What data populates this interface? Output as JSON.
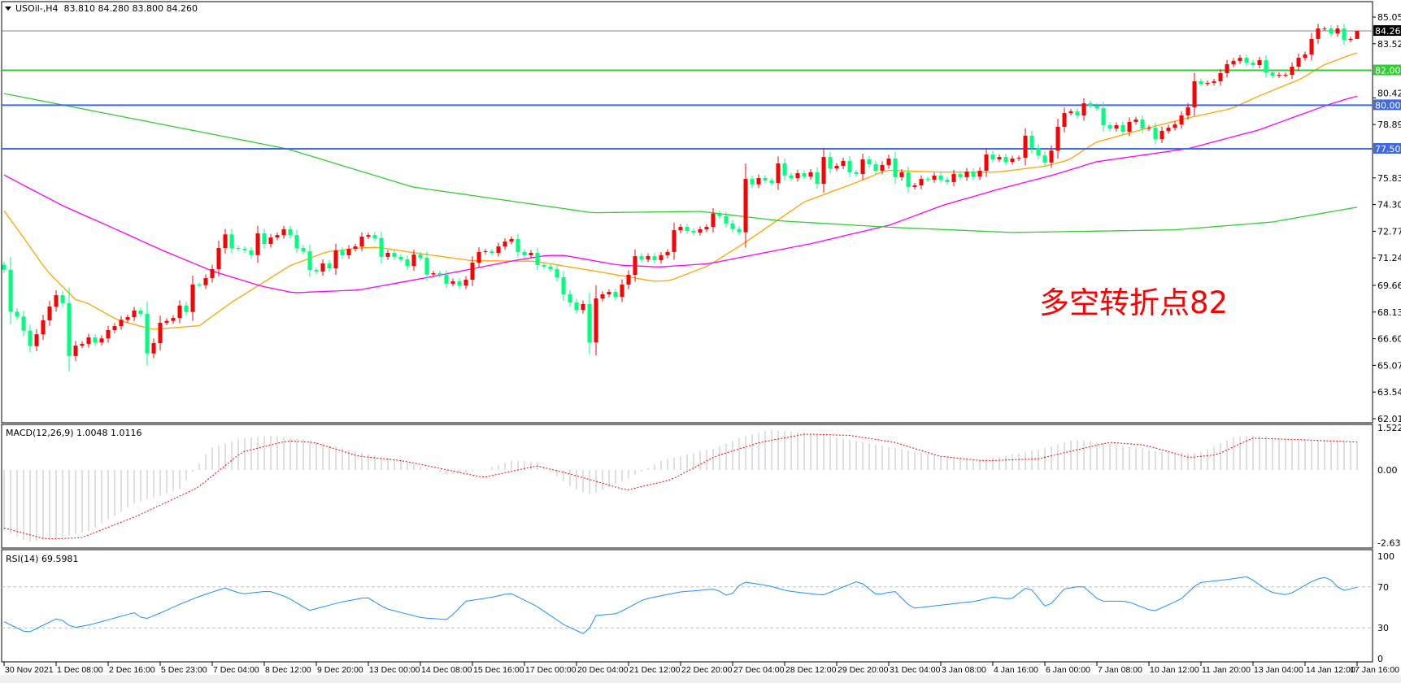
{
  "header": {
    "symbol": "USOil-,H4",
    "ohlc": "83.810 84.280 83.800 84.260"
  },
  "macd_label": "MACD(12,26,9) 1.0048 1.0116",
  "rsi_label": "RSI(14) 69.5981",
  "annotation": "多空转折点82",
  "colors": {
    "bull": "#ff0000",
    "bear": "#00ff7f",
    "ma_fast": "#ffa500",
    "ma_mid": "#ff00ff",
    "ma_slow": "#32cd32",
    "rsi": "#1e90ff",
    "macd_hist": "#c0c0c0",
    "macd_signal": "#ff0000",
    "line_82": "#32cd32",
    "line_80": "#4169e1",
    "line_77_5": "#4169e1",
    "price_line": "#778899"
  },
  "chart_data": {
    "type": "candlestick",
    "timeframe": "H4",
    "price_axis": {
      "range": [
        62.015,
        85.055
      ],
      "ticks": [
        "85.055",
        "83.525",
        "80.420",
        "78.890",
        "75.830",
        "74.300",
        "72.770",
        "71.240",
        "69.665",
        "68.135",
        "66.605",
        "65.075",
        "63.545",
        "62.015"
      ]
    },
    "time_labels": [
      "30 Nov 2021",
      "1 Dec 08:00",
      "2 Dec 16:00",
      "5 Dec 23:00",
      "7 Dec 04:00",
      "8 Dec 12:00",
      "9 Dec 20:00",
      "13 Dec 00:00",
      "14 Dec 08:00",
      "15 Dec 16:00",
      "17 Dec 00:00",
      "20 Dec 04:00",
      "21 Dec 12:00",
      "22 Dec 20:00",
      "27 Dec 04:00",
      "28 Dec 12:00",
      "29 Dec 20:00",
      "31 Dec 04:00",
      "3 Jan 08:00",
      "4 Jan 16:00",
      "6 Jan 00:00",
      "7 Jan 08:00",
      "10 Jan 12:00",
      "11 Jan 20:00",
      "13 Jan 04:00",
      "14 Jan 12:00",
      "17 Jan 16:00"
    ],
    "first_open": 70.85,
    "closes": [
      70.56,
      68.16,
      67.88,
      67.07,
      66.18,
      66.86,
      67.66,
      68.45,
      69.1,
      68.65,
      65.61,
      66.21,
      66.31,
      66.68,
      66.4,
      66.62,
      67.1,
      67.33,
      67.69,
      67.84,
      68.22,
      68.03,
      65.76,
      66.35,
      67.52,
      67.63,
      67.8,
      68.51,
      68.14,
      69.71,
      69.68,
      70.08,
      70.6,
      71.81,
      72.59,
      71.81,
      71.76,
      71.68,
      71.4,
      72.65,
      72.04,
      72.41,
      72.55,
      72.88,
      72.55,
      71.81,
      71.62,
      70.55,
      70.46,
      70.92,
      70.64,
      71.67,
      71.39,
      71.76,
      71.9,
      72.46,
      72.55,
      72.37,
      71.3,
      71.53,
      71.3,
      71.16,
      70.78,
      71.43,
      71.25,
      70.29,
      70.36,
      70.27,
      69.76,
      69.9,
      69.66,
      69.99,
      70.97,
      71.58,
      71.62,
      71.53,
      71.9,
      72.18,
      72.32,
      71.58,
      71.39,
      71.53,
      70.83,
      70.74,
      70.6,
      70.13,
      69.15,
      68.68,
      68.26,
      68.59,
      66.4,
      68.92,
      69.15,
      69.29,
      69.01,
      69.71,
      70.27,
      71.34,
      71.16,
      71.34,
      71.11,
      71.39,
      71.58,
      72.83,
      73.02,
      72.79,
      72.69,
      72.88,
      73.02,
      73.78,
      73.64,
      73.22,
      72.9,
      72.71,
      75.77,
      75.46,
      75.82,
      75.68,
      75.54,
      76.66,
      75.97,
      75.82,
      76.1,
      75.91,
      76.15,
      75.49,
      77.03,
      76.38,
      76.52,
      76.8,
      76.15,
      76.05,
      76.89,
      76.61,
      76.24,
      76.57,
      76.94,
      75.87,
      76.15,
      75.31,
      75.4,
      75.77,
      75.73,
      75.96,
      75.73,
      75.59,
      76.05,
      75.87,
      76.19,
      75.91,
      76.24,
      77.17,
      76.89,
      77.03,
      76.75,
      76.94,
      76.98,
      78.25,
      77.54,
      77.12,
      76.71,
      77.4,
      78.76,
      79.55,
      79.64,
      79.41,
      80.11,
      79.97,
      79.83,
      78.85,
      78.66,
      78.85,
      78.48,
      79.04,
      79.18,
      78.66,
      78.71,
      78.06,
      78.53,
      78.71,
      78.9,
      79.41,
      79.88,
      81.37,
      81.23,
      81.28,
      81.37,
      81.84,
      82.35,
      82.54,
      82.72,
      82.44,
      82.3,
      82.58,
      81.88,
      81.7,
      81.74,
      81.74,
      82.21,
      82.72,
      82.91,
      83.8,
      84.4,
      84.4,
      84.12,
      84.4,
      83.75,
      83.8,
      84.26
    ],
    "last_ohlc": [
      83.81,
      84.28,
      83.8,
      84.26
    ],
    "moving_averages": [
      {
        "color": "#ffa500",
        "points": [
          [
            0,
            73.94
          ],
          [
            2.8,
            72.51
          ],
          [
            6.6,
            70.49
          ],
          [
            11,
            68.85
          ],
          [
            12.8,
            68.65
          ],
          [
            17.4,
            67.69
          ],
          [
            22.8,
            67.14
          ],
          [
            30,
            67.35
          ],
          [
            35,
            68.7
          ],
          [
            44,
            70.8
          ],
          [
            49.5,
            71.58
          ],
          [
            54.5,
            71.81
          ],
          [
            57.4,
            71.85
          ],
          [
            63.7,
            71.5
          ],
          [
            72,
            71.08
          ],
          [
            81.6,
            71.05
          ],
          [
            90.75,
            70.49
          ],
          [
            99.9,
            69.9
          ],
          [
            102.4,
            69.94
          ],
          [
            108.3,
            70.8
          ],
          [
            113.7,
            72.07
          ],
          [
            123,
            74.45
          ],
          [
            131.4,
            75.62
          ],
          [
            135.6,
            76.27
          ],
          [
            144.25,
            76.16
          ],
          [
            152.6,
            76.16
          ],
          [
            160,
            76.5
          ],
          [
            163.7,
            76.86
          ],
          [
            167.8,
            77.87
          ],
          [
            176.2,
            78.73
          ],
          [
            182,
            79.27
          ],
          [
            188.7,
            79.81
          ],
          [
            192.8,
            80.51
          ],
          [
            199.5,
            81.53
          ],
          [
            202.8,
            82.3
          ],
          [
            207.8,
            83.0
          ]
        ]
      },
      {
        "color": "#ff00ff",
        "points": [
          [
            0,
            76.0
          ],
          [
            3.5,
            75.31
          ],
          [
            9.1,
            74.22
          ],
          [
            16.2,
            73.05
          ],
          [
            24.5,
            71.65
          ],
          [
            32,
            70.49
          ],
          [
            39.5,
            69.63
          ],
          [
            44.5,
            69.24
          ],
          [
            54.5,
            69.4
          ],
          [
            66,
            70.18
          ],
          [
            78.3,
            71.08
          ],
          [
            83.3,
            71.38
          ],
          [
            86.2,
            71.38
          ],
          [
            94.4,
            70.83
          ],
          [
            100.7,
            70.72
          ],
          [
            108.3,
            70.91
          ],
          [
            124.2,
            72.07
          ],
          [
            136.2,
            73.13
          ],
          [
            144.25,
            74.25
          ],
          [
            152.6,
            75.15
          ],
          [
            161.7,
            76.04
          ],
          [
            167.8,
            76.75
          ],
          [
            182,
            77.51
          ],
          [
            192.8,
            78.57
          ],
          [
            203.7,
            80.05
          ],
          [
            207.8,
            80.51
          ]
        ]
      },
      {
        "color": "#32cd32",
        "points": [
          [
            0,
            80.67
          ],
          [
            43.5,
            77.5
          ],
          [
            62.8,
            75.31
          ],
          [
            90.5,
            73.83
          ],
          [
            107,
            73.91
          ],
          [
            119.5,
            73.36
          ],
          [
            136.2,
            73.0
          ],
          [
            155,
            72.7
          ],
          [
            161.7,
            72.74
          ],
          [
            180,
            72.85
          ],
          [
            185,
            73.0
          ],
          [
            195,
            73.3
          ],
          [
            207.8,
            74.14
          ]
        ]
      }
    ],
    "horizontal_lines": [
      {
        "value": 84.26,
        "label": "84.260",
        "color": "#778899",
        "label_bg": "#000000"
      },
      {
        "value": 82.0,
        "label": "82.000",
        "color": "#32cd32",
        "label_bg": "#32cd32"
      },
      {
        "value": 80.0,
        "label": "80.000",
        "color": "#4169e1",
        "label_bg": "#4169e1"
      },
      {
        "value": 77.5,
        "label": "77.500",
        "color": "#4169e1",
        "label_bg": "#4169e1"
      }
    ],
    "macd": {
      "params": "12,26,9",
      "range": [
        -2.6392,
        1.5227
      ],
      "ticks": [
        "1.5227",
        "0.00",
        "-2.6392"
      ],
      "histogram": [
        [
          0,
          -2.2
        ],
        [
          3.6,
          -2.6
        ],
        [
          7.7,
          -2.5
        ],
        [
          13.2,
          -2.2
        ],
        [
          20.1,
          -1.2
        ],
        [
          27,
          -0.7
        ],
        [
          31.8,
          0.8
        ],
        [
          36.6,
          1.15
        ],
        [
          40.7,
          1.25
        ],
        [
          46.2,
          1.1
        ],
        [
          54.5,
          0.65
        ],
        [
          61.3,
          0.33
        ],
        [
          68.2,
          -0.17
        ],
        [
          73.7,
          0
        ],
        [
          77.8,
          0.33
        ],
        [
          81.9,
          0.3
        ],
        [
          87.4,
          -0.65
        ],
        [
          90.2,
          -0.9
        ],
        [
          95.7,
          -0.35
        ],
        [
          101.2,
          0.35
        ],
        [
          109.4,
          0.8
        ],
        [
          113.5,
          1.2
        ],
        [
          117.7,
          1.45
        ],
        [
          123.2,
          1.35
        ],
        [
          130,
          1.1
        ],
        [
          136.9,
          0.8
        ],
        [
          143.8,
          0.5
        ],
        [
          149.3,
          0.35
        ],
        [
          153.4,
          0.5
        ],
        [
          160.3,
          0.8
        ],
        [
          164.4,
          1.1
        ],
        [
          168.5,
          1.0
        ],
        [
          174,
          0.8
        ],
        [
          178.1,
          0.65
        ],
        [
          183.6,
          0.6
        ],
        [
          189.1,
          1.2
        ],
        [
          193.2,
          1.25
        ],
        [
          198.7,
          1.05
        ],
        [
          202.9,
          1.1
        ],
        [
          208,
          1.0048
        ]
      ],
      "signal": [
        [
          0,
          -2.1
        ],
        [
          6.4,
          -2.5
        ],
        [
          11.9,
          -2.45
        ],
        [
          20.1,
          -1.7
        ],
        [
          29.7,
          -0.65
        ],
        [
          36.6,
          0.65
        ],
        [
          43.5,
          1.05
        ],
        [
          47.6,
          1.0
        ],
        [
          54.5,
          0.5
        ],
        [
          61.3,
          0.33
        ],
        [
          68.2,
          0
        ],
        [
          73.7,
          -0.27
        ],
        [
          81.9,
          0.15
        ],
        [
          87.4,
          -0.17
        ],
        [
          95.7,
          -0.73
        ],
        [
          102.6,
          -0.35
        ],
        [
          109.4,
          0.5
        ],
        [
          116.3,
          1.0
        ],
        [
          123.2,
          1.3
        ],
        [
          130,
          1.25
        ],
        [
          136.9,
          1.0
        ],
        [
          143.8,
          0.5
        ],
        [
          150.6,
          0.33
        ],
        [
          158.9,
          0.4
        ],
        [
          169.9,
          1.0
        ],
        [
          175.4,
          0.9
        ],
        [
          182.2,
          0.45
        ],
        [
          186.4,
          0.55
        ],
        [
          191.9,
          1.15
        ],
        [
          198.7,
          1.1
        ],
        [
          208,
          1.0116
        ]
      ]
    },
    "rsi": {
      "period": 14,
      "range": [
        0,
        100
      ],
      "levels": [
        70,
        30
      ],
      "ticks": [
        "100",
        "70",
        "30",
        "0"
      ],
      "values": [
        [
          0,
          36
        ],
        [
          3.6,
          25
        ],
        [
          8.4,
          40
        ],
        [
          10.5,
          30
        ],
        [
          13.2,
          33
        ],
        [
          20.1,
          45
        ],
        [
          21.5,
          38
        ],
        [
          24.2,
          45
        ],
        [
          27,
          53
        ],
        [
          29.7,
          60
        ],
        [
          33.9,
          69
        ],
        [
          36.6,
          63
        ],
        [
          40.7,
          66
        ],
        [
          43.5,
          60
        ],
        [
          46.9,
          47
        ],
        [
          51.7,
          55
        ],
        [
          55.8,
          60
        ],
        [
          58.6,
          49
        ],
        [
          64.1,
          40
        ],
        [
          68.2,
          38
        ],
        [
          71,
          56
        ],
        [
          75.1,
          60
        ],
        [
          77.8,
          64
        ],
        [
          81.9,
          51
        ],
        [
          86.1,
          33
        ],
        [
          89.5,
          23
        ],
        [
          90.9,
          42
        ],
        [
          94.3,
          44
        ],
        [
          98.4,
          58
        ],
        [
          103.9,
          65
        ],
        [
          109.4,
          68
        ],
        [
          111.5,
          60
        ],
        [
          113.5,
          75
        ],
        [
          117.7,
          71
        ],
        [
          120.4,
          66
        ],
        [
          125.9,
          62
        ],
        [
          131.4,
          76
        ],
        [
          134.2,
          62
        ],
        [
          136.9,
          66
        ],
        [
          139.6,
          49
        ],
        [
          143.8,
          52
        ],
        [
          149.3,
          56
        ],
        [
          152,
          60
        ],
        [
          154.8,
          58
        ],
        [
          157.5,
          71
        ],
        [
          160.3,
          49
        ],
        [
          163,
          68
        ],
        [
          165.8,
          71
        ],
        [
          168.5,
          56
        ],
        [
          172.6,
          56
        ],
        [
          176.7,
          46
        ],
        [
          180.9,
          58
        ],
        [
          183.6,
          74
        ],
        [
          187.7,
          77
        ],
        [
          191.2,
          80
        ],
        [
          194.6,
          65
        ],
        [
          197.4,
          62
        ],
        [
          201.5,
          77
        ],
        [
          203.5,
          80
        ],
        [
          205.6,
          66
        ],
        [
          208,
          69.5981
        ]
      ]
    }
  }
}
